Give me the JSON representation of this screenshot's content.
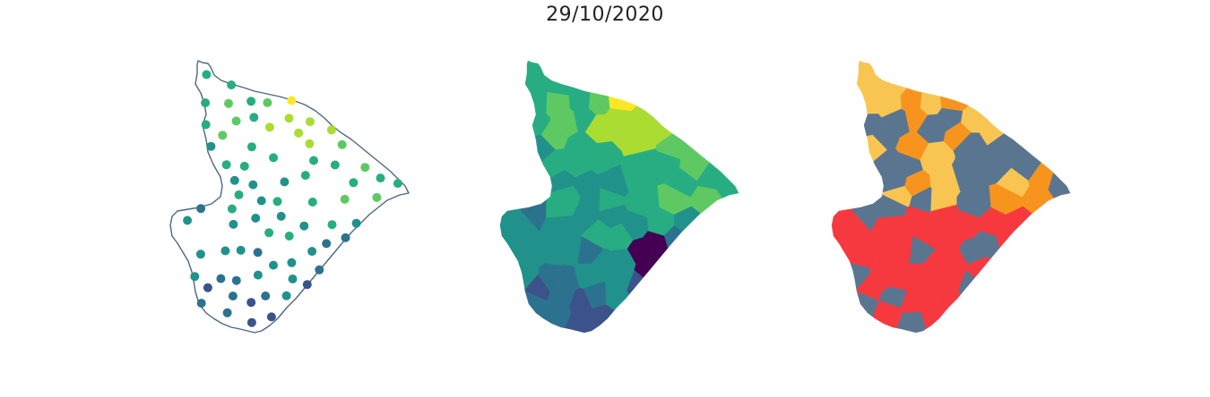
{
  "figure": {
    "title": "29/10/2020"
  },
  "colors": {
    "outline": "#4b6882",
    "viridis": [
      "#440154",
      "#3b528b",
      "#2c728e",
      "#21918c",
      "#27ad81",
      "#5ec962",
      "#aadc32",
      "#fde725"
    ],
    "categorical": {
      "cat_a": "#f9c552",
      "cat_b": "#f7941d",
      "cat_c": "#5a7590",
      "cat_d": "#f5393f"
    }
  },
  "panels": [
    {
      "id": "points",
      "kind": "point-map"
    },
    {
      "id": "choropleth",
      "kind": "continuous-choropleth"
    },
    {
      "id": "categorical",
      "kind": "categorical-choropleth"
    }
  ]
}
